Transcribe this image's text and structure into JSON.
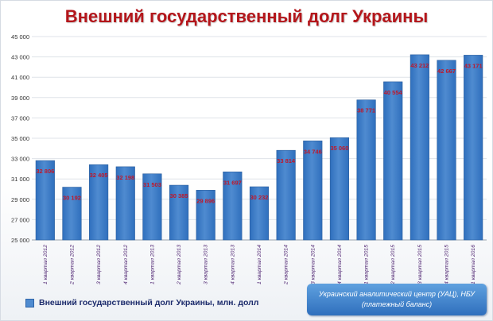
{
  "title": "Внешний государственный долг Украины",
  "legend": {
    "label": "Внешний государственный долг Украины, млн. долл",
    "color": "#4f8bd0"
  },
  "source": {
    "line1": "Украинский аналитический центр (УАЦ), НБУ",
    "line2": "(платежный баланс)"
  },
  "colors": {
    "bar": "#4f8bd0",
    "bar_dark": "#2f6fbd",
    "data_label": "#c0182a",
    "category_label": "#4b1f6e"
  },
  "chart_data": {
    "type": "bar",
    "title": "Внешний государственный долг Украины",
    "xlabel": "",
    "ylabel": "",
    "ylim": [
      25000,
      45000
    ],
    "y_ticks": [
      25000,
      27000,
      29000,
      31000,
      33000,
      35000,
      37000,
      39000,
      41000,
      43000,
      45000
    ],
    "y_tick_labels": [
      "25 000",
      "27 000",
      "29 000",
      "31 000",
      "33 000",
      "35 000",
      "37 000",
      "39 000",
      "41 000",
      "43 000",
      "45 000"
    ],
    "grid": true,
    "legend_position": "bottom-left",
    "categories": [
      "1 квартал 2012",
      "2 квартал 2012",
      "3 квартал 2012",
      "4 квартал 2012",
      "1 квартал 2013",
      "2 квартал 2013",
      "3 квартал 2013",
      "4 квартал 2013",
      "1 квартал 2014",
      "2 квартал 2014",
      "3 квартал 2014",
      "4 квартал 2014",
      "1 квартал 2015",
      "2 квартал 2015",
      "3 квартал 2015",
      "4 квартал 2015",
      "1 квартал 2016"
    ],
    "series": [
      {
        "name": "Внешний государственный долг Украины, млн. долл",
        "values": [
          32806,
          30192,
          32405,
          32198,
          31503,
          30385,
          29896,
          31697,
          30232,
          33814,
          34746,
          35060,
          38771,
          40554,
          43212,
          42667,
          43171
        ],
        "labels": [
          "32 806",
          "30 192",
          "32 405",
          "32 198",
          "31 503",
          "30 385",
          "29 896",
          "31 697",
          "30 232",
          "33 814",
          "34 746",
          "35 060",
          "38 771",
          "40 554",
          "43 212",
          "42 667",
          "43 171"
        ]
      }
    ]
  }
}
